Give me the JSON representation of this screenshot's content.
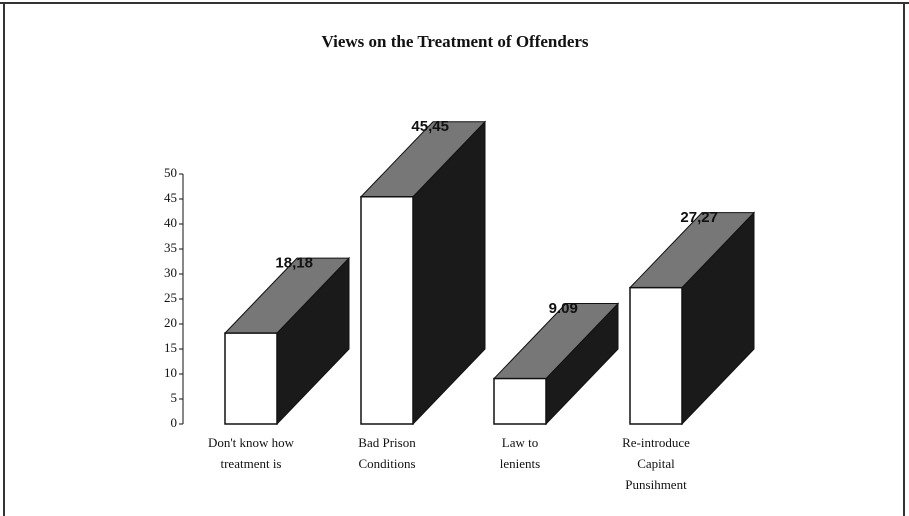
{
  "chart_data": {
    "type": "bar3d",
    "title": "Views on the Treatment of Offenders",
    "categories": [
      "Don't know how treatment is",
      "Bad Prison Conditions",
      "Law to lenients",
      "Re-introduce Capital Punsihment"
    ],
    "values": [
      18.18,
      45.45,
      9.09,
      27.27
    ],
    "value_labels": [
      "18,18",
      "45,45",
      "9.09",
      "27,27"
    ],
    "color": "#ffffff",
    "ylim": [
      0,
      50
    ],
    "yticks": [
      0,
      5,
      10,
      15,
      20,
      25,
      30,
      35,
      40,
      45,
      50
    ]
  }
}
